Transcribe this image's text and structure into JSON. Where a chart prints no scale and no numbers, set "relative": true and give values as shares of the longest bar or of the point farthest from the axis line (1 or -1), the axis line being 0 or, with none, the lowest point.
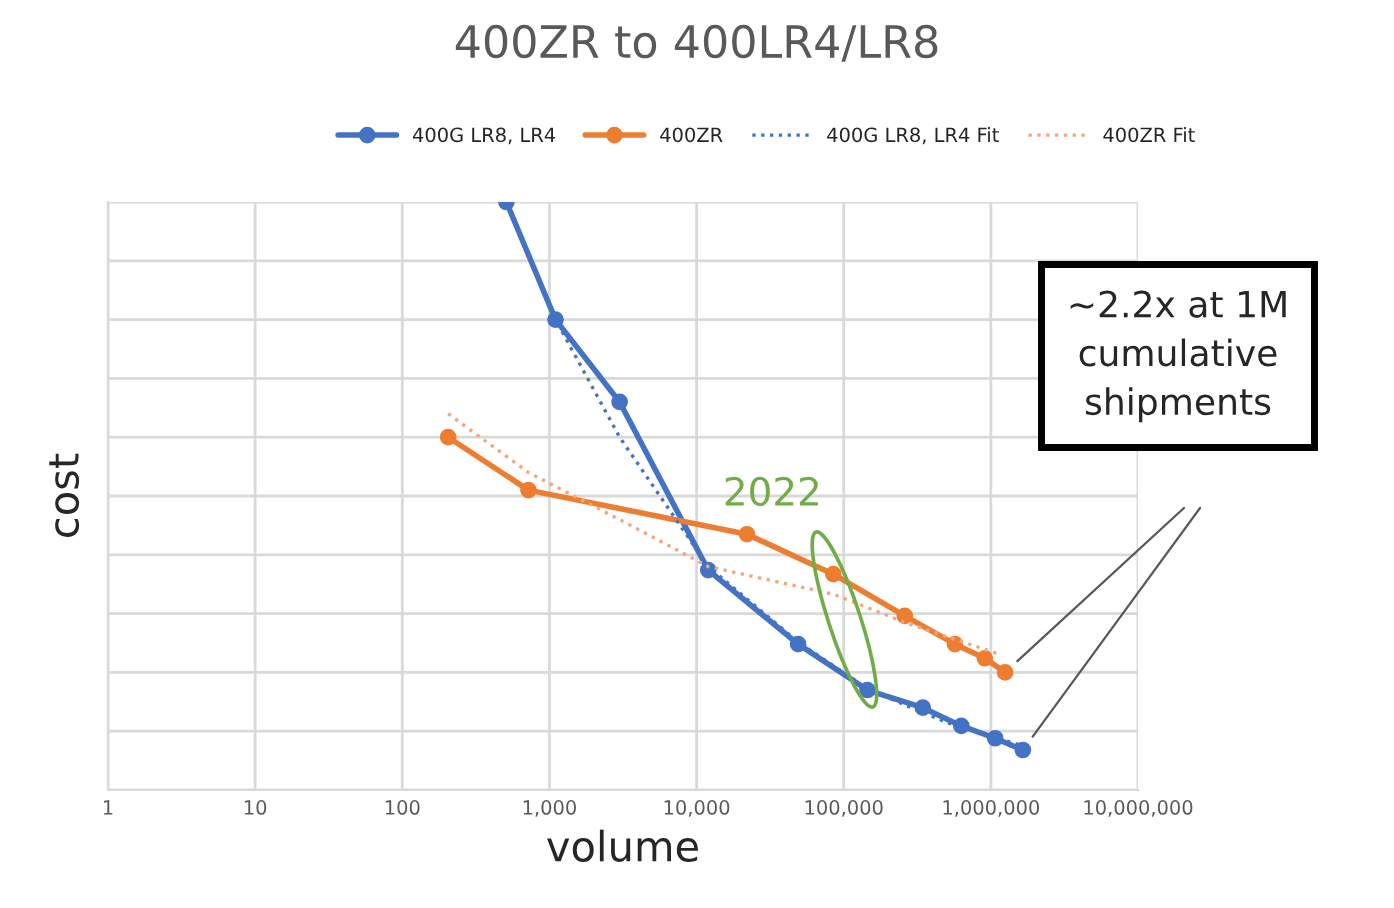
{
  "chart_data": {
    "type": "line",
    "title": "400ZR to 400LR4/LR8",
    "xlabel": "volume",
    "ylabel": "cost",
    "relative": true,
    "log": "x",
    "xlim": [
      1,
      10000000
    ],
    "xticks": [
      1,
      10,
      100,
      {
        "value": 1000,
        "label": "1,000"
      },
      {
        "value": 10000,
        "label": "10,000"
      },
      {
        "value": 100000,
        "label": "100,000"
      },
      {
        "value": 1000000,
        "label": "1,000,000"
      },
      {
        "value": 10000000,
        "label": "10,000,000"
      }
    ],
    "grid": true,
    "legend": "top",
    "marker": "circle",
    "line_style": "solid",
    "series": [
      {
        "name": "400G LR8, LR4",
        "color": "#4472c4",
        "x": [
          510,
          1100,
          3000,
          12000,
          49000,
          145000,
          345000,
          630000,
          1070000,
          1650000
        ],
        "values": [
          1.0,
          0.8,
          0.66,
          0.374,
          0.248,
          0.17,
          0.14,
          0.109,
          0.088,
          0.068
        ]
      },
      {
        "name": "400ZR",
        "color": "#ed7d31",
        "x": [
          205,
          720,
          22000,
          85000,
          260000,
          570000,
          910000,
          1250000
        ],
        "values": [
          0.6,
          0.51,
          0.435,
          0.367,
          0.296,
          0.248,
          0.224,
          0.2
        ]
      },
      {
        "name": "400G LR8, LR4 Fit",
        "color": "#4472c4",
        "marker": "none",
        "line_style": "dotted",
        "x": [
          510,
          1100,
          3000,
          12000,
          50000,
          150000,
          500000,
          1650000
        ],
        "values": [
          1.0,
          0.8,
          0.6,
          0.38,
          0.25,
          0.17,
          0.115,
          0.075
        ]
      },
      {
        "name": "400ZR Fit",
        "color": "#f4a582",
        "marker": "none",
        "line_style": "dotted",
        "x": [
          205,
          720,
          3000,
          12000,
          85000,
          260000,
          1170000
        ],
        "values": [
          0.64,
          0.54,
          0.46,
          0.38,
          0.333,
          0.285,
          0.23
        ]
      }
    ],
    "annotations": [
      "~2.2x at 1M\ncumulative\nshipments",
      "2022"
    ]
  }
}
